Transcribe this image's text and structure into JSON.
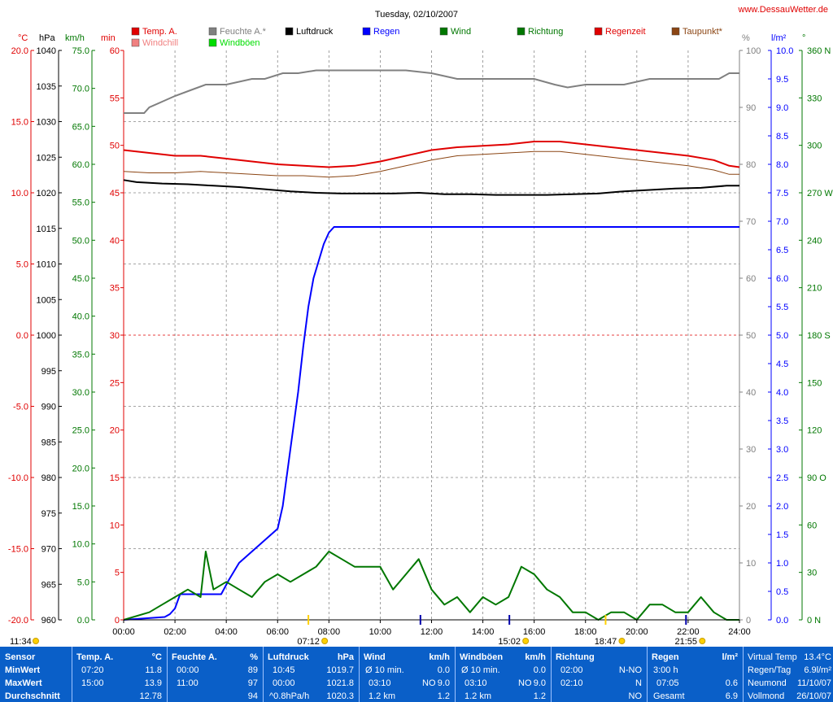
{
  "title": "Tuesday, 02/10/2007",
  "site": "www.DessauWetter.de",
  "legend": [
    {
      "label": "Temp. A.",
      "color": "#e00000"
    },
    {
      "label": "Windchill",
      "color": "#f08080"
    },
    {
      "label": "Feuchte A.*",
      "color": "#808080"
    },
    {
      "label": "Windböen",
      "color": "#00dd00"
    },
    {
      "label": "Luftdruck",
      "color": "#000000"
    },
    {
      "label": "Regen",
      "color": "#0000ff"
    },
    {
      "label": "Wind",
      "color": "#007700"
    },
    {
      "label": "Richtung",
      "color": "#007700"
    },
    {
      "label": "Regenzeit",
      "color": "#e00000"
    },
    {
      "label": "Taupunkt*",
      "color": "#8b4513"
    }
  ],
  "axis_units": {
    "temp": "°C",
    "press": "hPa",
    "wind": "km/h",
    "min": "min",
    "pct": "%",
    "rain": "l/m²",
    "dir": "°"
  },
  "axes": {
    "temp_ticks": [
      "20.0",
      "15.0",
      "10.0",
      "5.0",
      "0.0",
      "-5.0",
      "-10.0",
      "-15.0",
      "-20.0"
    ],
    "press_ticks": [
      "1040",
      "1035",
      "1030",
      "1025",
      "1020",
      "1015",
      "1010",
      "1005",
      "1000",
      "995",
      "990",
      "985",
      "980",
      "975",
      "970",
      "965",
      "960"
    ],
    "wind_ticks": [
      "75.0",
      "70.0",
      "65.0",
      "60.0",
      "55.0",
      "50.0",
      "45.0",
      "40.0",
      "35.0",
      "30.0",
      "25.0",
      "20.0",
      "15.0",
      "10.0",
      "5.0",
      "0.0"
    ],
    "min_ticks": [
      "60",
      "55",
      "50",
      "45",
      "40",
      "35",
      "30",
      "25",
      "20",
      "15",
      "10",
      "5",
      "0"
    ],
    "pct_ticks": [
      "100",
      "90",
      "80",
      "70",
      "60",
      "50",
      "40",
      "30",
      "20",
      "10",
      "0"
    ],
    "rain_ticks": [
      "10.0",
      "9.5",
      "9.0",
      "8.5",
      "8.0",
      "7.5",
      "7.0",
      "6.5",
      "6.0",
      "5.5",
      "5.0",
      "4.5",
      "4.0",
      "3.5",
      "3.0",
      "2.5",
      "2.0",
      "1.5",
      "1.0",
      "0.5",
      "0.0"
    ],
    "dir_ticks": [
      "360 N",
      "330",
      "300",
      "270 W",
      "240",
      "210",
      "180 S",
      "150",
      "120",
      "90 O",
      "60",
      "30",
      "0 N"
    ],
    "x_ticks": [
      "00:00",
      "02:00",
      "04:00",
      "06:00",
      "08:00",
      "10:00",
      "12:00",
      "14:00",
      "16:00",
      "18:00",
      "20:00",
      "22:00",
      "24:00"
    ]
  },
  "sun_moon": [
    {
      "time": "11:34",
      "kind": "moon-rise"
    },
    {
      "time": "07:12",
      "kind": "sun-rise"
    },
    {
      "time": "15:02",
      "kind": "moon-set"
    },
    {
      "time": "18:47",
      "kind": "sun-set"
    },
    {
      "time": "21:55",
      "kind": "moon-rise2"
    }
  ],
  "chart_data": {
    "type": "line",
    "title": "Tuesday, 02/10/2007",
    "x_range": [
      0,
      24
    ],
    "grid": true,
    "series": [
      {
        "name": "Feuchte A.*",
        "axis": "%",
        "x": [
          0,
          0.8,
          1.0,
          1.5,
          2.0,
          2.6,
          3.2,
          4.0,
          5.0,
          5.5,
          6.2,
          6.8,
          7.5,
          8.5,
          10.0,
          11.0,
          12.0,
          13.0,
          14.0,
          15.0,
          16.0,
          16.8,
          17.3,
          18.0,
          18.8,
          19.5,
          20.5,
          21.5,
          22.5,
          23.2,
          23.6,
          24.0
        ],
        "y": [
          89,
          89,
          90,
          91,
          92,
          93,
          94,
          94,
          95,
          95,
          96,
          96,
          96.5,
          96.5,
          96.5,
          96.5,
          96,
          95,
          95,
          95,
          95,
          94,
          93.5,
          94,
          94,
          94,
          95,
          95,
          95,
          95,
          96,
          96
        ]
      },
      {
        "name": "Temp. A.",
        "axis": "°C",
        "x": [
          0,
          1,
          2,
          3,
          4,
          5,
          6,
          7,
          8,
          9,
          10,
          11,
          12,
          13,
          14,
          15,
          16,
          17,
          18,
          19,
          20,
          21,
          22,
          23,
          23.6,
          24
        ],
        "y": [
          13.0,
          12.8,
          12.6,
          12.6,
          12.4,
          12.2,
          12.0,
          11.9,
          11.8,
          11.9,
          12.2,
          12.6,
          13.0,
          13.2,
          13.3,
          13.4,
          13.6,
          13.6,
          13.4,
          13.2,
          13.0,
          12.8,
          12.6,
          12.3,
          11.9,
          11.8
        ]
      },
      {
        "name": "Taupunkt*",
        "axis": "°C",
        "x": [
          0,
          1,
          2,
          3,
          4,
          5,
          6,
          7,
          8,
          9,
          10,
          11,
          12,
          13,
          14,
          15,
          16,
          17,
          18,
          19,
          20,
          21,
          22,
          23,
          23.6,
          24
        ],
        "y": [
          11.5,
          11.4,
          11.4,
          11.5,
          11.4,
          11.3,
          11.2,
          11.2,
          11.1,
          11.2,
          11.5,
          11.9,
          12.3,
          12.6,
          12.7,
          12.8,
          12.9,
          12.9,
          12.7,
          12.5,
          12.3,
          12.1,
          11.9,
          11.6,
          11.3,
          11.3
        ]
      },
      {
        "name": "Luftdruck",
        "axis": "hPa",
        "x": [
          0,
          0.5,
          1.5,
          2.5,
          3.5,
          4.5,
          5.5,
          6.5,
          7.5,
          8.5,
          9.5,
          10.5,
          11.5,
          12.5,
          13.5,
          14.5,
          15.5,
          16.5,
          17.5,
          18.5,
          19.5,
          20.5,
          21.5,
          22.5,
          23.5,
          24
        ],
        "y": [
          1021.8,
          1021.5,
          1021.3,
          1021.2,
          1021.0,
          1020.8,
          1020.5,
          1020.2,
          1020.0,
          1019.9,
          1019.9,
          1019.9,
          1020.0,
          1019.8,
          1019.8,
          1019.7,
          1019.7,
          1019.7,
          1019.8,
          1019.9,
          1020.2,
          1020.4,
          1020.6,
          1020.7,
          1021.0,
          1021.0
        ]
      },
      {
        "name": "Regen",
        "axis": "l/m²",
        "x": [
          0,
          1.6,
          1.8,
          2.0,
          2.2,
          3.0,
          3.8,
          4.1,
          4.5,
          5.0,
          5.5,
          6.0,
          6.2,
          6.5,
          6.8,
          7.0,
          7.2,
          7.4,
          7.6,
          7.8,
          8.0,
          8.2,
          8.5,
          8.7,
          9.0,
          12.0,
          16.0,
          20.0,
          24.0
        ],
        "y": [
          0,
          0.05,
          0.1,
          0.2,
          0.45,
          0.45,
          0.45,
          0.7,
          1.0,
          1.2,
          1.4,
          1.6,
          2.0,
          3.0,
          4.0,
          4.8,
          5.5,
          6.0,
          6.3,
          6.6,
          6.8,
          6.9,
          6.9,
          6.9,
          6.9,
          6.9,
          6.9,
          6.9,
          6.9
        ]
      },
      {
        "name": "Wind",
        "axis": "km/h",
        "x": [
          0,
          1,
          1.5,
          2,
          2.5,
          3,
          3.2,
          3.5,
          4,
          4.5,
          5,
          5.5,
          6,
          6.5,
          7,
          7.5,
          8,
          8.5,
          9,
          9.5,
          10,
          10.5,
          11,
          11.5,
          12,
          12.5,
          13,
          13.5,
          14,
          14.5,
          15,
          15.5,
          16,
          16.5,
          17,
          17.5,
          18,
          18.5,
          19,
          19.5,
          20,
          20.5,
          21,
          21.5,
          22,
          22.5,
          23,
          23.5,
          24
        ],
        "y": [
          0,
          1,
          2,
          3,
          4,
          3,
          9,
          4,
          5,
          4,
          3,
          5,
          6,
          5,
          6,
          7,
          9,
          8,
          7,
          7,
          7,
          4,
          6,
          8,
          4,
          2,
          3,
          1,
          3,
          2,
          3,
          7,
          6,
          4,
          3,
          1,
          1,
          0,
          1,
          1,
          0,
          2,
          2,
          1,
          1,
          3,
          1,
          0,
          0
        ]
      }
    ],
    "stats": {
      "temp": {
        "min": "11.8",
        "min_time": "07:20",
        "max": "13.9",
        "max_time": "15:00",
        "avg": "12.78"
      },
      "humidity": {
        "min": "89",
        "min_time": "00:00",
        "max": "97",
        "max_time": "11:00",
        "avg": "94"
      },
      "pressure": {
        "min": "1019.7",
        "min_time": "10:45",
        "max": "1021.8",
        "max_time": "00:00",
        "avg": "1020.3",
        "trend": "^0.8hPa/h"
      }
    }
  },
  "panel": {
    "headers": {
      "sensor": "Sensor",
      "temp": "Temp. A.",
      "temp_unit": "°C",
      "hum": "Feuchte A.",
      "hum_unit": "%",
      "press": "Luftdruck",
      "press_unit": "hPa",
      "wind": "Wind",
      "wind_unit": "km/h",
      "gust": "Windböen",
      "gust_unit": "km/h",
      "dir": "Richtung",
      "rain": "Regen",
      "rain_unit": "l/m²"
    },
    "rows": {
      "min": "MinWert",
      "max": "MaxWert",
      "avg": "Durchschnitt"
    },
    "wind": {
      "r1_l": "Ø 10 min.",
      "r1_v": "0.0",
      "r2_l": "03:10",
      "r2_m": "NO",
      "r2_v": "9.0",
      "r3_l": "1.2 km",
      "r3_v": "1.2"
    },
    "gust": {
      "r1_l": "Ø 10 min.",
      "r1_v": "0.0",
      "r2_l": "03:10",
      "r2_m": "NO",
      "r2_v": "9.0",
      "r3_l": "1.2 km",
      "r3_v": "1.2"
    },
    "dir": {
      "r1_l": "02:00",
      "r1_v": "N-NO",
      "r2_l": "02:10",
      "r2_v": "N",
      "r3_v": "NO"
    },
    "rain": {
      "r1_l": "3:00 h",
      "r2_l": "07:05",
      "r2_v": "0.6",
      "r3_l": "Gesamt",
      "r3_v": "6.9"
    },
    "extra": {
      "r0_l": "Virtual Temp",
      "r0_v": "13.4°C",
      "r1_l": "Regen/Tag",
      "r1_v": "6.9l/m²",
      "r2_l": "Neumond",
      "r2_v": "11/10/07",
      "r3_l": "Vollmond",
      "r3_v": "26/10/07"
    }
  }
}
